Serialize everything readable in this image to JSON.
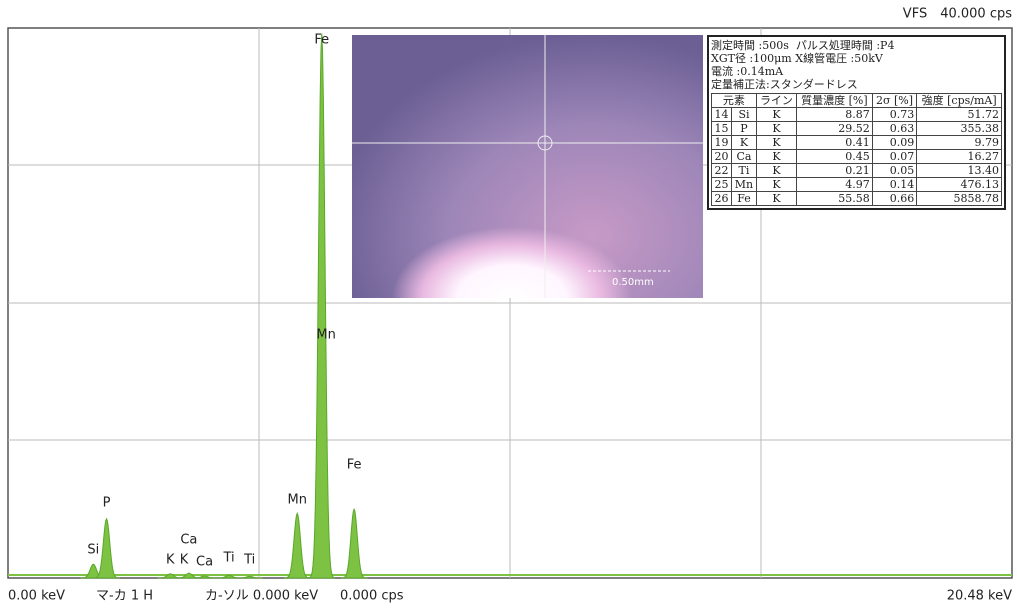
{
  "status": {
    "vfs_name": "VFS",
    "vfs": {
      "value": 40,
      "label": "40.000 cps"
    }
  },
  "spectrum": {
    "x_start": {
      "value": 0,
      "label": "0.00 keV"
    },
    "x_end": {
      "value": 20.48,
      "label": "20.48 keV"
    },
    "peaks": [
      {
        "energy": 1.74,
        "height": 1.0
      },
      {
        "energy": 2.01,
        "height": 4.3
      },
      {
        "energy": 3.31,
        "height": 0.3
      },
      {
        "energy": 3.69,
        "height": 0.35
      },
      {
        "energy": 4.01,
        "height": 0.15
      },
      {
        "energy": 4.51,
        "height": 0.2
      },
      {
        "energy": 4.93,
        "height": 0.12
      },
      {
        "energy": 5.9,
        "height": 4.7
      },
      {
        "energy": 6.4,
        "height": 39.6
      },
      {
        "energy": 7.06,
        "height": 5.0
      }
    ],
    "labels": [
      {
        "text": "Si",
        "energy": 1.74
      },
      {
        "text": "P",
        "energy": 2.01
      },
      {
        "text": "K",
        "energy": 3.31
      },
      {
        "text": "K",
        "energy": 3.59
      },
      {
        "text": "Ca",
        "energy": 3.69
      },
      {
        "text": "Ca",
        "energy": 4.01
      },
      {
        "text": "Ti",
        "energy": 4.51
      },
      {
        "text": "Ti",
        "energy": 4.93
      },
      {
        "text": "Mn",
        "energy": 5.9
      },
      {
        "text": "Fe",
        "energy": 6.4
      },
      {
        "text": "Mn",
        "energy": 6.49
      },
      {
        "text": "Fe",
        "energy": 7.06
      }
    ]
  },
  "footer": {
    "marker": "マ-カ  1 H",
    "cursor": "カ-ソル  0.000 keV",
    "cursor_cps": "0.000 cps"
  },
  "photo": {
    "scale": "0.50mm"
  },
  "results": {
    "header": [
      "測定時間 :500s",
      "パルス処理時間 :P4",
      "XGT径 :100μm",
      "X線管電圧 :50kV",
      "電流 :0.14mA",
      "定量補正法:スタンダードレス"
    ],
    "columns": [
      "元素",
      "ライン",
      "質量濃度 [%]",
      "2σ [%]",
      "強度 [cps/mA]"
    ],
    "rows": [
      [
        "14",
        "Si",
        "K",
        "8.87",
        "0.73",
        "51.72"
      ],
      [
        "15",
        "P",
        "K",
        "29.52",
        "0.63",
        "355.38"
      ],
      [
        "19",
        "K",
        "K",
        "0.41",
        "0.09",
        "9.79"
      ],
      [
        "20",
        "Ca",
        "K",
        "0.45",
        "0.07",
        "16.27"
      ],
      [
        "22",
        "Ti",
        "K",
        "0.21",
        "0.05",
        "13.40"
      ],
      [
        "25",
        "Mn",
        "K",
        "4.97",
        "0.14",
        "476.13"
      ],
      [
        "26",
        "Fe",
        "K",
        "55.58",
        "0.66",
        "5858.78"
      ]
    ]
  }
}
